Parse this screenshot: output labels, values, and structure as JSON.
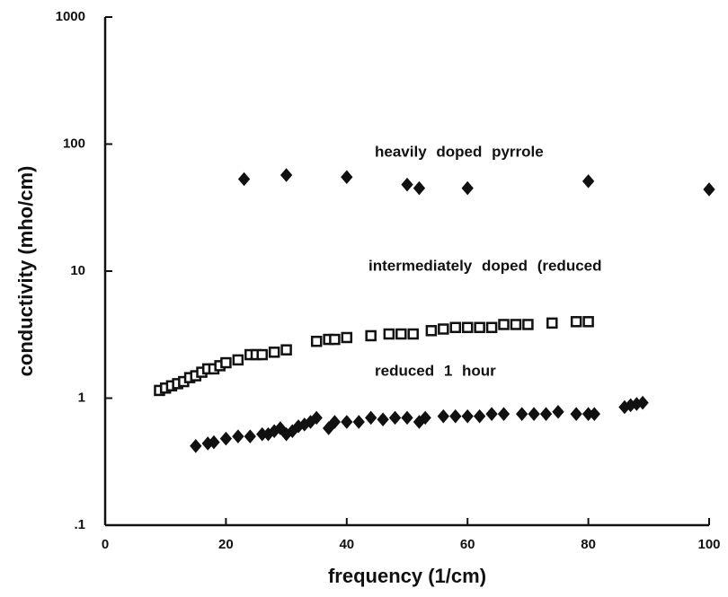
{
  "chart_data": {
    "type": "scatter",
    "xlabel": "frequency (1/cm)",
    "ylabel": "conductivity (mho/cm)",
    "xlim": [
      0,
      100
    ],
    "xticks": [
      0,
      20,
      40,
      60,
      80,
      100
    ],
    "ylim": [
      0.1,
      1000
    ],
    "yticks": [
      {
        "value": 0.1,
        "label": ".1"
      },
      1,
      10,
      100,
      1000
    ],
    "ylog": true,
    "series": [
      {
        "name": "heavily doped pyrrole",
        "color": "#111111",
        "marker": "diamond",
        "x": [
          23,
          30,
          40,
          50,
          52,
          60,
          80,
          100
        ],
        "values": [
          53,
          57,
          55,
          48,
          45,
          45,
          51,
          44
        ]
      },
      {
        "name": "intermediately doped (reduced",
        "color": "#111111",
        "marker": "square",
        "x": [
          9,
          10,
          11,
          12,
          13,
          14,
          15,
          16,
          17,
          18,
          19,
          20,
          22,
          24,
          25,
          26,
          28,
          30,
          35,
          37,
          38,
          40,
          44,
          47,
          49,
          51,
          54,
          56,
          58,
          60,
          62,
          64,
          66,
          68,
          70,
          74,
          78,
          80
        ],
        "values": [
          1.15,
          1.2,
          1.25,
          1.3,
          1.35,
          1.45,
          1.5,
          1.6,
          1.7,
          1.7,
          1.8,
          1.9,
          2.0,
          2.2,
          2.2,
          2.2,
          2.3,
          2.4,
          2.8,
          2.9,
          2.9,
          3.0,
          3.1,
          3.2,
          3.2,
          3.2,
          3.4,
          3.5,
          3.6,
          3.6,
          3.6,
          3.6,
          3.8,
          3.8,
          3.8,
          3.9,
          4.0,
          4.0
        ]
      },
      {
        "name": "reduced 1 hour",
        "color": "#111111",
        "marker": "diamond",
        "x": [
          15,
          17,
          18,
          20,
          22,
          24,
          26,
          27,
          28,
          29,
          30,
          31,
          32,
          33,
          34,
          35,
          37,
          38,
          40,
          42,
          44,
          46,
          48,
          50,
          52,
          53,
          56,
          58,
          60,
          62,
          64,
          66,
          69,
          71,
          73,
          75,
          78,
          80,
          81,
          86,
          87,
          88,
          89
        ],
        "values": [
          0.42,
          0.44,
          0.45,
          0.48,
          0.5,
          0.5,
          0.52,
          0.52,
          0.55,
          0.58,
          0.52,
          0.55,
          0.6,
          0.62,
          0.65,
          0.7,
          0.58,
          0.65,
          0.65,
          0.65,
          0.7,
          0.68,
          0.7,
          0.7,
          0.65,
          0.7,
          0.72,
          0.72,
          0.72,
          0.72,
          0.75,
          0.75,
          0.75,
          0.75,
          0.75,
          0.78,
          0.75,
          0.75,
          0.75,
          0.85,
          0.88,
          0.9,
          0.92
        ]
      }
    ]
  }
}
